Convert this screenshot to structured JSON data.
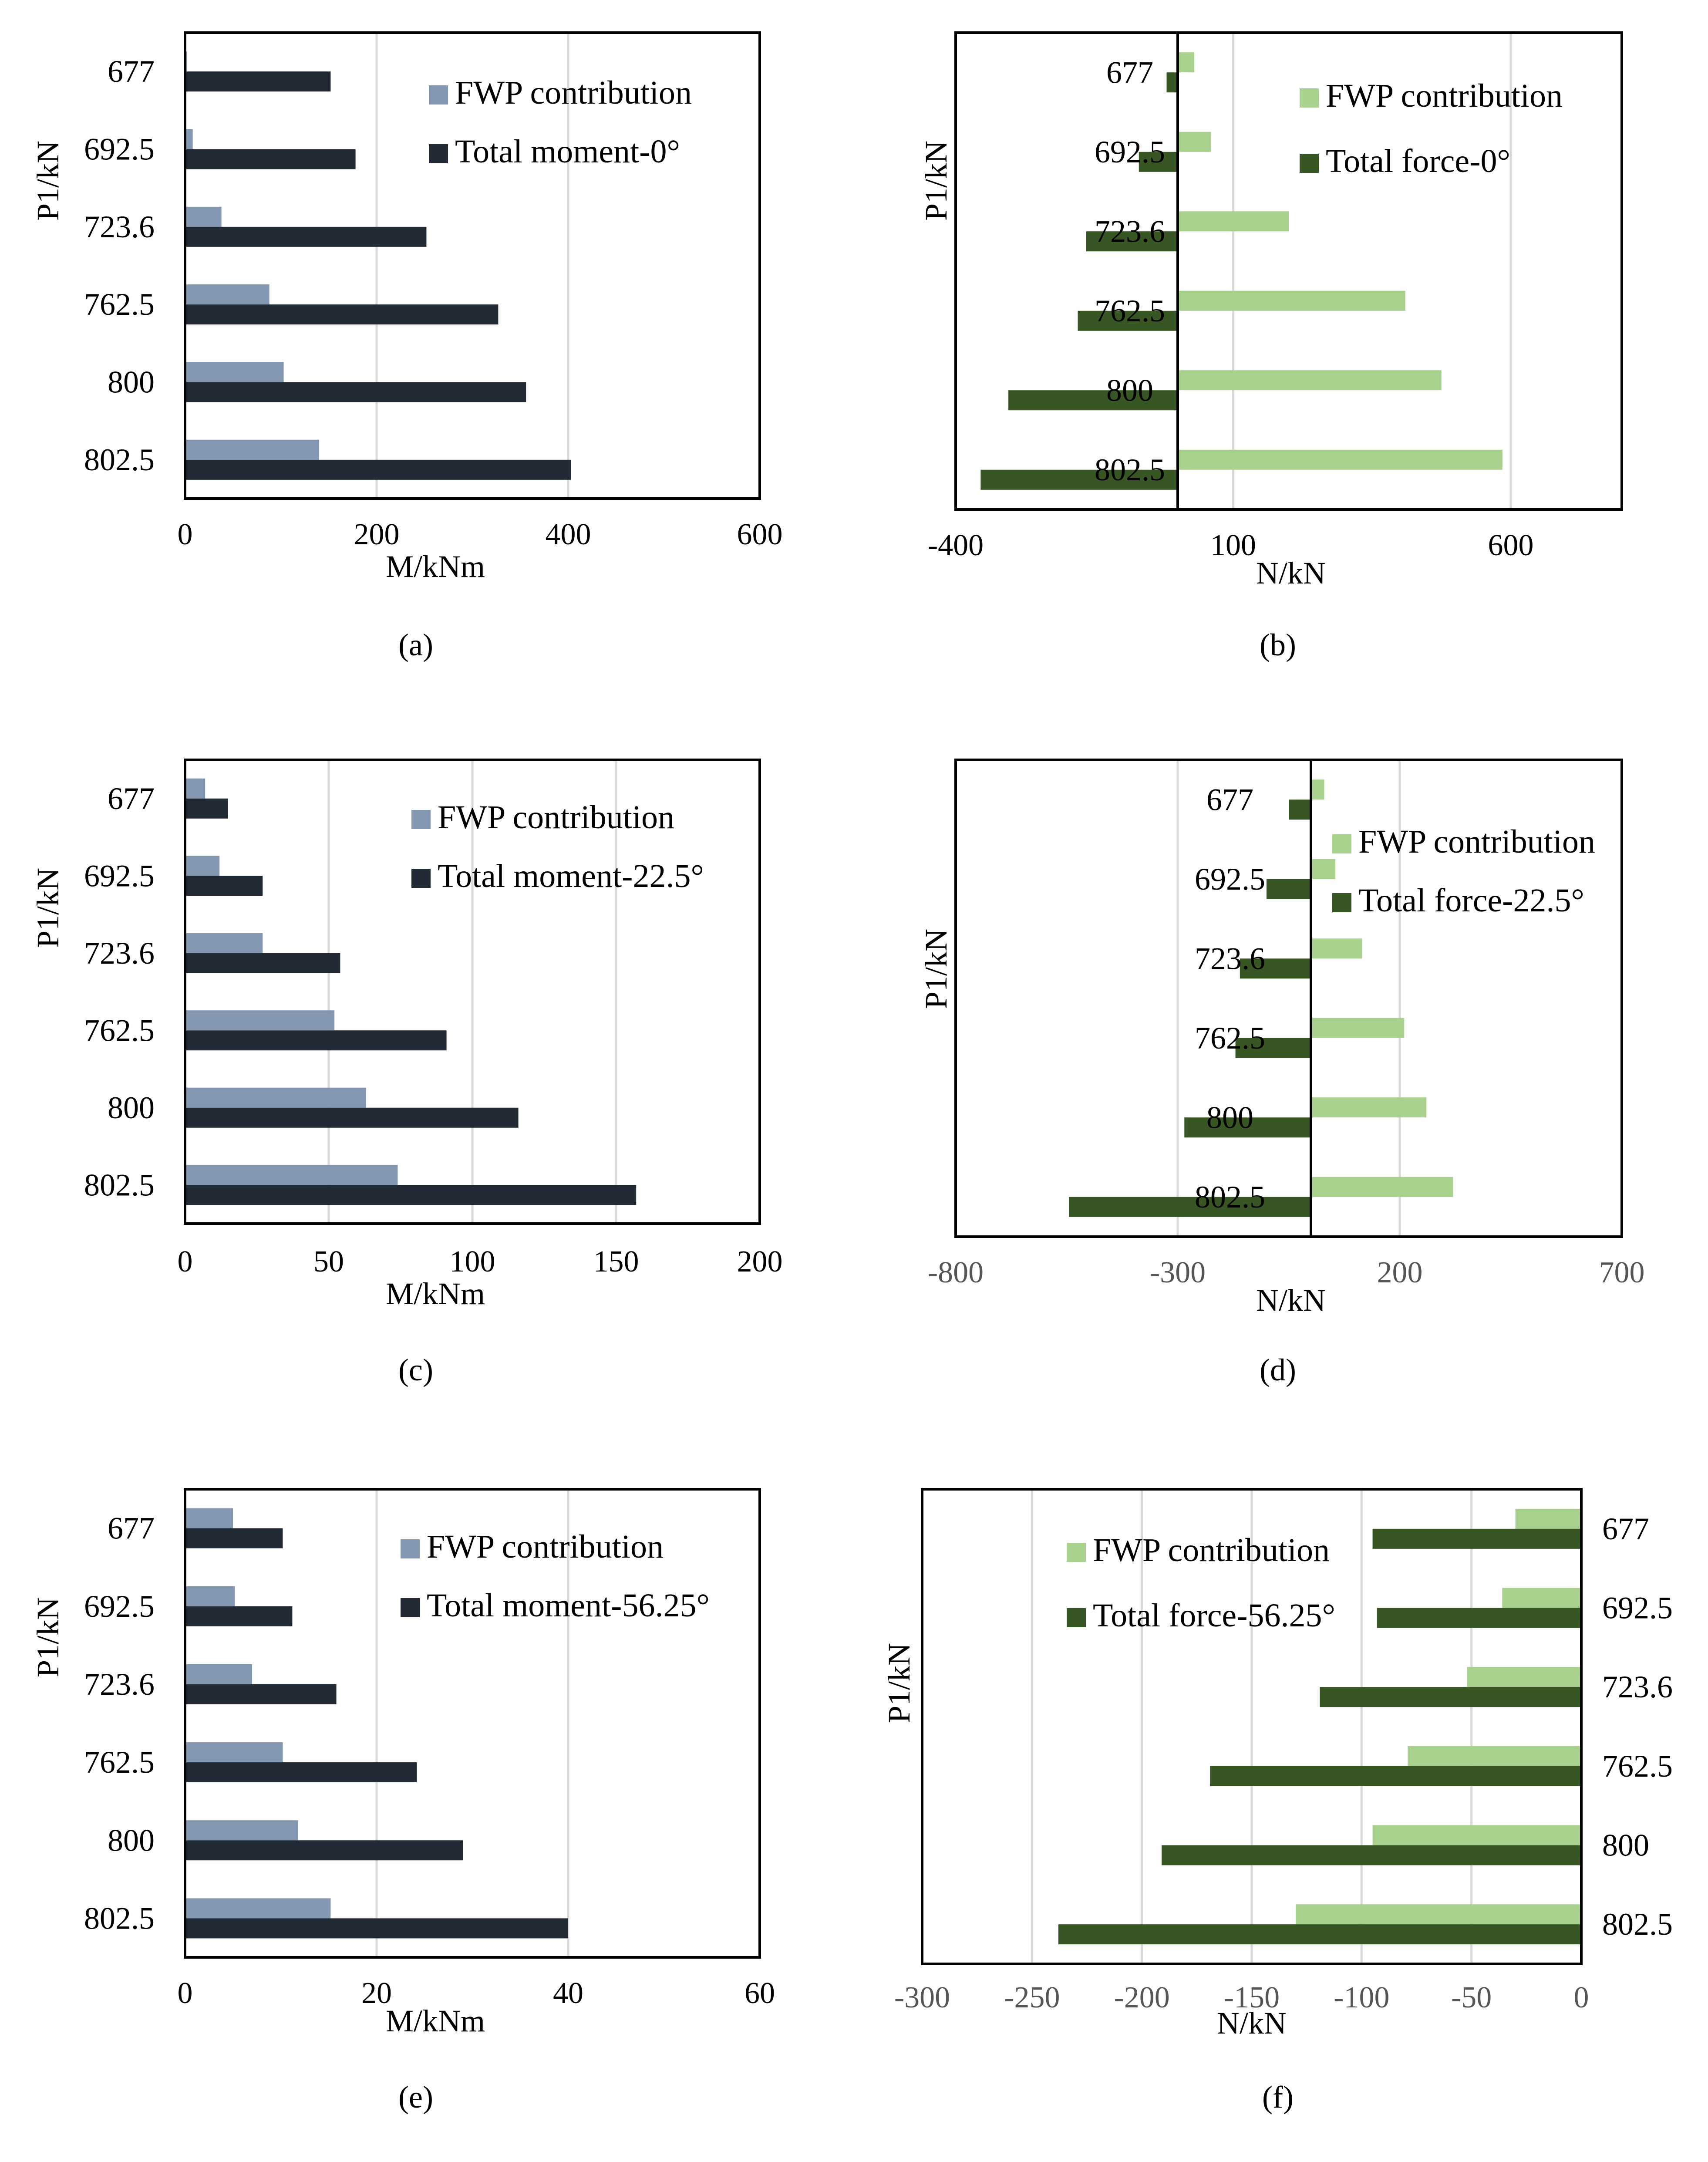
{
  "colors": {
    "fwp_moment": "#8497b0",
    "total_moment": "#222a35",
    "fwp_force": "#a9d18e",
    "total_force": "#375623",
    "grid": "#d9d9d9",
    "frame": "#000000"
  },
  "chart_data": [
    {
      "id": "a",
      "type": "bar",
      "orientation": "horizontal",
      "subcaption": "(a)",
      "ylabel": "P1/kN",
      "xlabel": "M/kNm",
      "categories": [
        "677",
        "692.5",
        "723.6",
        "762.5",
        "800",
        "802.5"
      ],
      "xlim": [
        0,
        600
      ],
      "xticks": [
        "0",
        "200",
        "400",
        "600"
      ],
      "series": [
        {
          "name": "FWP contribution",
          "values": [
            2,
            8,
            38,
            88,
            103,
            140
          ]
        },
        {
          "name": "Total moment-0°",
          "values": [
            152,
            178,
            252,
            327,
            356,
            403
          ]
        }
      ],
      "legend_position": "top-right"
    },
    {
      "id": "b",
      "type": "bar",
      "orientation": "horizontal",
      "subcaption": "(b)",
      "ylabel": "P1/kN",
      "xlabel": "N/kN",
      "categories": [
        "677",
        "692.5",
        "723.6",
        "762.5",
        "800",
        "802.5"
      ],
      "xlim": [
        -400,
        800
      ],
      "xticks": [
        "-400",
        "100",
        "600"
      ],
      "series": [
        {
          "name": "FWP contribution",
          "values": [
            30,
            60,
            200,
            410,
            475,
            585
          ]
        },
        {
          "name": "Total force-0°",
          "values": [
            -20,
            -70,
            -165,
            -180,
            -305,
            -355
          ]
        }
      ],
      "legend_position": "top-right"
    },
    {
      "id": "c",
      "type": "bar",
      "orientation": "horizontal",
      "subcaption": "(c)",
      "ylabel": "P1/kN",
      "xlabel": "M/kNm",
      "categories": [
        "677",
        "692.5",
        "723.6",
        "762.5",
        "800",
        "802.5"
      ],
      "xlim": [
        0,
        200
      ],
      "xticks": [
        "0",
        "50",
        "100",
        "150",
        "200"
      ],
      "series": [
        {
          "name": "FWP contribution",
          "values": [
            7,
            12,
            27,
            52,
            63,
            74
          ]
        },
        {
          "name": "Total moment-22.5°",
          "values": [
            15,
            27,
            54,
            91,
            116,
            157
          ]
        }
      ],
      "legend_position": "top-right"
    },
    {
      "id": "d",
      "type": "bar",
      "orientation": "horizontal",
      "subcaption": "(d)",
      "ylabel": "P1/kN",
      "xlabel": "N/kN",
      "categories": [
        "677",
        "692.5",
        "723.6",
        "762.5",
        "800",
        "802.5"
      ],
      "xlim": [
        -800,
        700
      ],
      "xticks": [
        "-800",
        "-300",
        "200",
        "700"
      ],
      "series": [
        {
          "name": "FWP contribution",
          "values": [
            30,
            55,
            115,
            210,
            260,
            320
          ]
        },
        {
          "name": "Total force-22.5°",
          "values": [
            -50,
            -100,
            -160,
            -170,
            -285,
            -545
          ]
        }
      ],
      "legend_position": "top-right"
    },
    {
      "id": "e",
      "type": "bar",
      "orientation": "horizontal",
      "subcaption": "(e)",
      "ylabel": "P1/kN",
      "xlabel": "M/kNm",
      "categories": [
        "677",
        "692.5",
        "723.6",
        "762.5",
        "800",
        "802.5"
      ],
      "xlim": [
        0,
        60
      ],
      "xticks": [
        "0",
        "20",
        "40",
        "60"
      ],
      "series": [
        {
          "name": "FWP contribution",
          "values": [
            5,
            5.2,
            7,
            10.2,
            11.8,
            15.2
          ]
        },
        {
          "name": "Total moment-56.25°",
          "values": [
            10.2,
            11.2,
            15.8,
            24.2,
            29,
            40
          ]
        }
      ],
      "legend_position": "top-right"
    },
    {
      "id": "f",
      "type": "bar",
      "orientation": "horizontal",
      "subcaption": "(f)",
      "ylabel": "P1/kN",
      "xlabel": "N/kN",
      "categories": [
        "677",
        "692.5",
        "723.6",
        "762.5",
        "800",
        "802.5"
      ],
      "xlim": [
        -300,
        0
      ],
      "xticks": [
        "-300",
        "-250",
        "-200",
        "-150",
        "-100",
        "-50",
        "0"
      ],
      "series": [
        {
          "name": "FWP contribution",
          "values": [
            -30,
            -36,
            -52,
            -79,
            -95,
            -130
          ]
        },
        {
          "name": "Total force-56.25°",
          "values": [
            -95,
            -93,
            -119,
            -169,
            -191,
            -238
          ]
        }
      ],
      "legend_position": "top-left"
    }
  ]
}
